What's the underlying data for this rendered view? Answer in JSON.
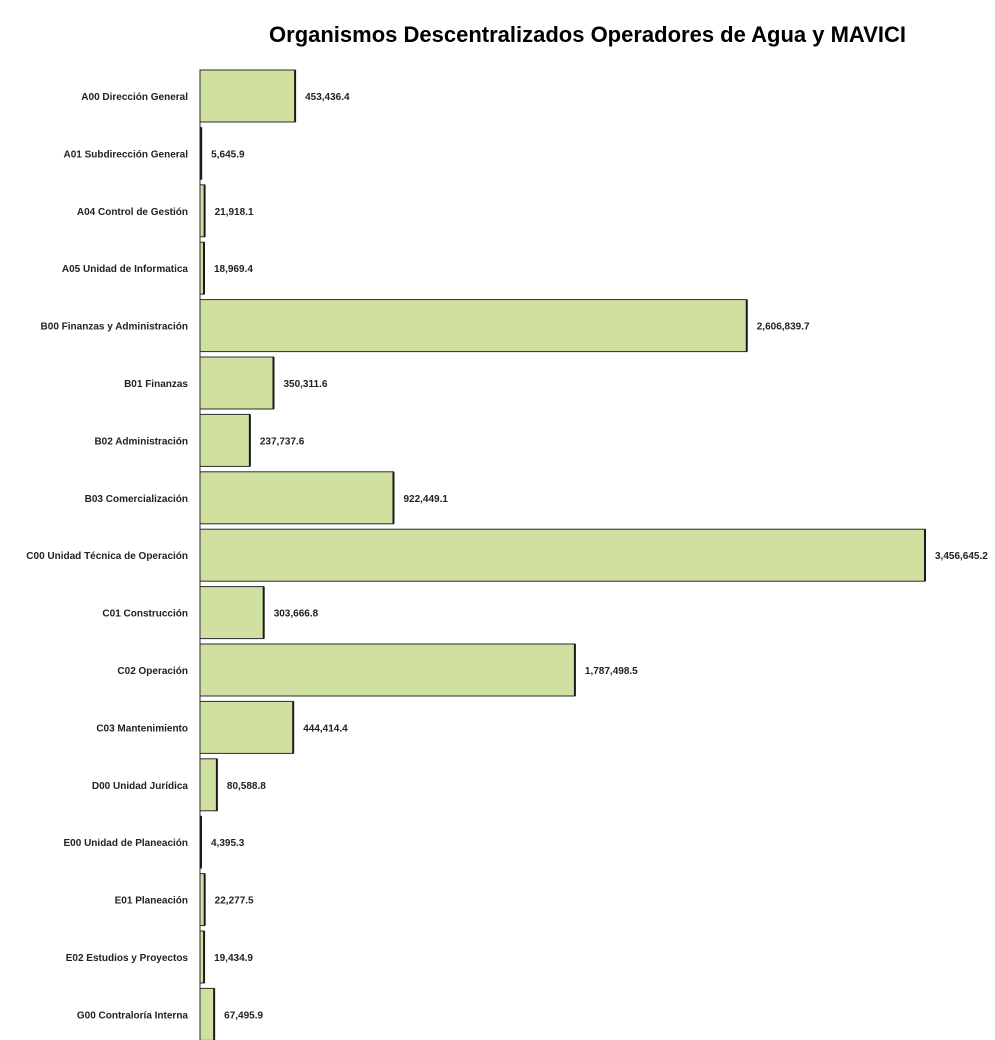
{
  "chart_data": {
    "type": "bar",
    "orientation": "horizontal",
    "title": "Organismos Descentralizados Operadores de Agua y MAVICI",
    "categories": [
      "A00 Dirección General",
      "A01 Subdirección General",
      "A04 Control de Gestión",
      "A05 Unidad de Informatica",
      "B00 Finanzas y Administración",
      "B01 Finanzas",
      "B02 Administración",
      "B03 Comercialización",
      "C00 Unidad Técnica de Operación",
      "C01 Construcción",
      "C02 Operación",
      "C03 Mantenimiento",
      "D00 Unidad Jurídica",
      "E00 Unidad de Planeación",
      "E01 Planeación",
      "E02 Estudios y Proyectos",
      "G00 Contraloría Interna"
    ],
    "values": [
      453436.4,
      5645.9,
      21918.1,
      18969.4,
      2606839.7,
      350311.6,
      237737.6,
      922449.1,
      3456645.2,
      303666.8,
      1787498.5,
      444414.4,
      80588.8,
      4395.3,
      22277.5,
      19434.9,
      67495.9
    ],
    "value_labels": [
      "453,436.4",
      "5,645.9",
      "21,918.1",
      "18,969.4",
      "2,606,839.7",
      "350,311.6",
      "237,737.6",
      "922,449.1",
      "3,456,645.2",
      "303,666.8",
      "1,787,498.5",
      "444,414.4",
      "80,588.8",
      "4,395.3",
      "22,277.5",
      "19,434.9",
      "67,495.9"
    ],
    "bar_color": "#cfe0a0",
    "bar_edge_color": "#2b2b2b",
    "grid": false,
    "legend": "none"
  }
}
